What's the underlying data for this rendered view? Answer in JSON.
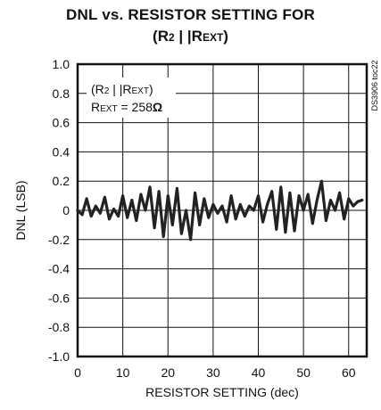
{
  "chart_data": {
    "type": "line",
    "title_line1": "DNL vs. RESISTOR SETTING FOR",
    "title_line2": "(R2 || REXT)",
    "xlabel": "RESISTOR SETTING (dec)",
    "ylabel": "DNL (LSB)",
    "xlim": [
      0,
      64
    ],
    "ylim": [
      -1.0,
      1.0
    ],
    "x_ticks": [
      "0",
      "10",
      "20",
      "30",
      "40",
      "50",
      "60"
    ],
    "y_ticks": [
      "1.0",
      "0.8",
      "0.6",
      "0.4",
      "0.2",
      "0",
      "-0.2",
      "-0.4",
      "-0.6",
      "-0.8",
      "-1.0"
    ],
    "grid": true,
    "annotation_line1": "(R2 || REXT)",
    "annotation_line2": "REXT = 258Ω",
    "side_label": "DS3906 toc22",
    "series": [
      {
        "color": "#222222",
        "x": [
          0,
          1,
          2,
          3,
          4,
          5,
          6,
          7,
          8,
          9,
          10,
          11,
          12,
          13,
          14,
          15,
          16,
          17,
          18,
          19,
          20,
          21,
          22,
          23,
          24,
          25,
          26,
          27,
          28,
          29,
          30,
          31,
          32,
          33,
          34,
          35,
          36,
          37,
          38,
          39,
          40,
          41,
          42,
          43,
          44,
          45,
          46,
          47,
          48,
          49,
          50,
          51,
          52,
          53,
          54,
          55,
          56,
          57,
          58,
          59,
          60,
          61,
          62,
          63
        ],
        "y": [
          0.0,
          -0.03,
          0.08,
          -0.04,
          0.03,
          -0.02,
          0.09,
          -0.06,
          0.01,
          -0.04,
          0.1,
          -0.05,
          0.07,
          -0.07,
          0.11,
          0.0,
          0.16,
          -0.12,
          0.13,
          -0.18,
          0.1,
          -0.1,
          0.15,
          -0.16,
          0.0,
          -0.2,
          0.12,
          -0.1,
          0.08,
          -0.05,
          0.04,
          -0.02,
          0.03,
          -0.08,
          0.1,
          -0.06,
          0.04,
          -0.04,
          0.03,
          0.0,
          0.1,
          -0.08,
          0.04,
          0.13,
          -0.13,
          0.16,
          -0.15,
          0.12,
          -0.14,
          0.1,
          0.0,
          0.11,
          -0.09,
          0.07,
          0.2,
          -0.07,
          0.07,
          0.0,
          0.12,
          -0.06,
          0.08,
          0.03,
          0.06,
          0.07
        ]
      }
    ]
  }
}
